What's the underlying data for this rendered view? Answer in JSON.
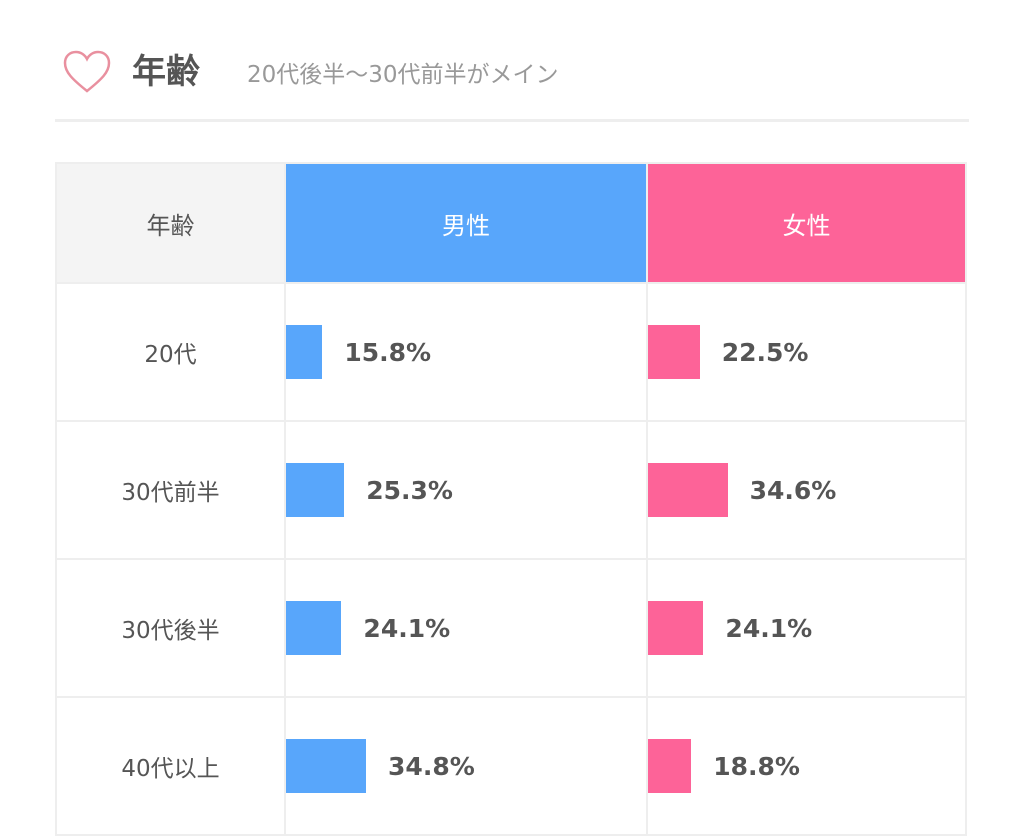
{
  "header": {
    "title": "年齢",
    "subtitle": "20代後半〜30代前半がメイン",
    "icon": "heart-icon"
  },
  "colors": {
    "male": "#58a6fb",
    "female": "#fd6398",
    "heart": "#e9909f"
  },
  "chart_data": {
    "type": "table",
    "columns": [
      "年齢",
      "男性",
      "女性"
    ],
    "categories": [
      "20代",
      "30代前半",
      "30代後半",
      "40代以上"
    ],
    "series": [
      {
        "name": "男性",
        "values": [
          15.8,
          25.3,
          24.1,
          34.8
        ],
        "labels": [
          "15.8%",
          "25.3%",
          "24.1%",
          "34.8%"
        ]
      },
      {
        "name": "女性",
        "values": [
          22.5,
          34.6,
          24.1,
          18.8
        ],
        "labels": [
          "22.5%",
          "34.6%",
          "24.1%",
          "18.8%"
        ]
      }
    ]
  }
}
